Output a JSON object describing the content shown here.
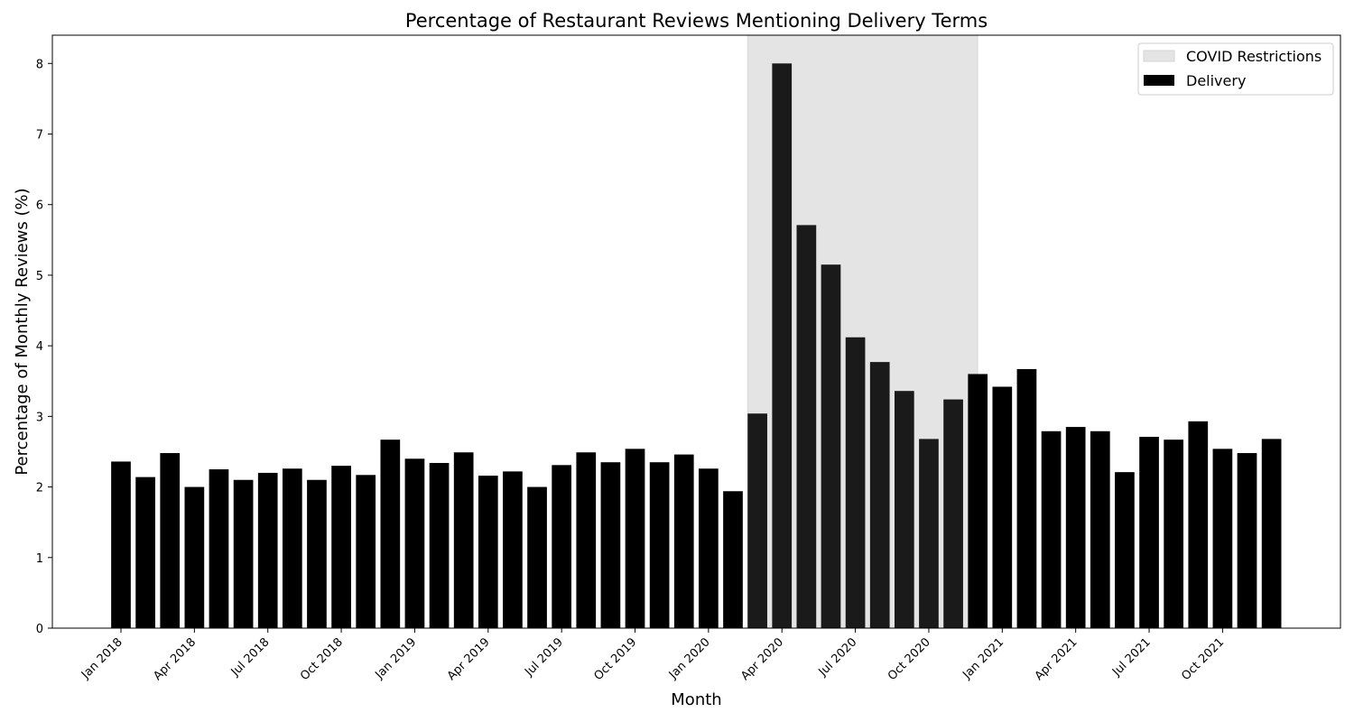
{
  "chart_data": {
    "type": "bar",
    "title": "Percentage of Restaurant Reviews Mentioning Delivery Terms",
    "xlabel": "Month",
    "ylabel": "Percentage of Monthly Reviews (%)",
    "ylim": [
      0,
      8.4
    ],
    "yticks": [
      "0",
      "1",
      "2",
      "3",
      "4",
      "5",
      "6",
      "7",
      "8"
    ],
    "grid": false,
    "legend_position": "top-right",
    "x_tick_labels": [
      {
        "index": 0,
        "label": "Jan 2018"
      },
      {
        "index": 3,
        "label": "Apr 2018"
      },
      {
        "index": 6,
        "label": "Jul 2018"
      },
      {
        "index": 9,
        "label": "Oct 2018"
      },
      {
        "index": 12,
        "label": "Jan 2019"
      },
      {
        "index": 15,
        "label": "Apr 2019"
      },
      {
        "index": 18,
        "label": "Jul 2019"
      },
      {
        "index": 21,
        "label": "Oct 2019"
      },
      {
        "index": 24,
        "label": "Jan 2020"
      },
      {
        "index": 27,
        "label": "Apr 2020"
      },
      {
        "index": 30,
        "label": "Jul 2020"
      },
      {
        "index": 33,
        "label": "Oct 2020"
      },
      {
        "index": 36,
        "label": "Jan 2021"
      },
      {
        "index": 39,
        "label": "Apr 2021"
      },
      {
        "index": 42,
        "label": "Jul 2021"
      },
      {
        "index": 45,
        "label": "Oct 2021"
      }
    ],
    "categories": [
      "2018-01",
      "2018-02",
      "2018-03",
      "2018-04",
      "2018-05",
      "2018-06",
      "2018-07",
      "2018-08",
      "2018-09",
      "2018-10",
      "2018-11",
      "2018-12",
      "2019-01",
      "2019-02",
      "2019-03",
      "2019-04",
      "2019-05",
      "2019-06",
      "2019-07",
      "2019-08",
      "2019-09",
      "2019-10",
      "2019-11",
      "2019-12",
      "2020-01",
      "2020-02",
      "2020-03",
      "2020-04",
      "2020-05",
      "2020-06",
      "2020-07",
      "2020-08",
      "2020-09",
      "2020-10",
      "2020-11",
      "2020-12",
      "2021-01",
      "2021-02",
      "2021-03",
      "2021-04",
      "2021-05",
      "2021-06",
      "2021-07",
      "2021-08",
      "2021-09",
      "2021-10",
      "2021-11",
      "2021-12"
    ],
    "series": [
      {
        "name": "Delivery",
        "color": "#000000",
        "values": [
          2.36,
          2.14,
          2.48,
          2.0,
          2.25,
          2.1,
          2.2,
          2.26,
          2.1,
          2.3,
          2.17,
          2.67,
          2.4,
          2.34,
          2.49,
          2.16,
          2.22,
          2.0,
          2.31,
          2.49,
          2.35,
          2.54,
          2.35,
          2.46,
          2.26,
          1.94,
          3.04,
          8.0,
          5.71,
          5.15,
          4.12,
          3.77,
          3.36,
          2.68,
          3.24,
          3.6,
          3.42,
          3.67,
          2.79,
          2.85,
          2.79,
          2.21,
          2.71,
          2.67,
          2.93,
          2.54,
          2.48,
          2.68
        ]
      }
    ],
    "shaded_region": {
      "name": "COVID Restrictions",
      "color": "#e4e4e4",
      "start": "2020-03",
      "end": "2020-12"
    }
  }
}
